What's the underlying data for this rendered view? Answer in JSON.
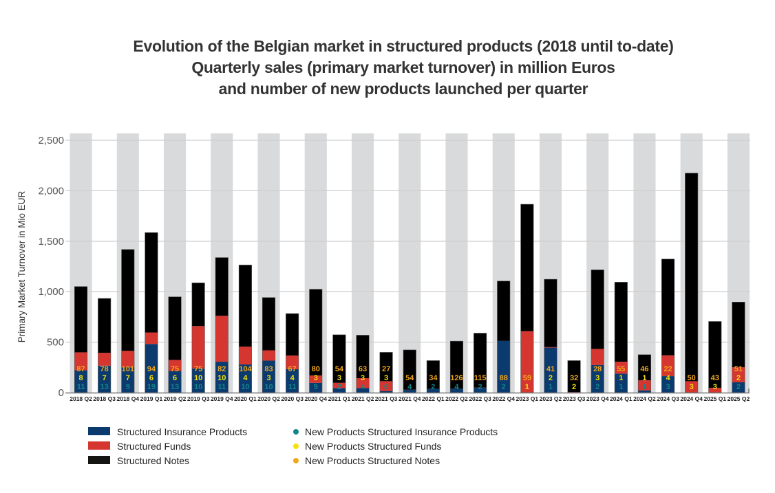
{
  "chart_data": {
    "type": "bar",
    "stacked": true,
    "title": [
      "Evolution of the Belgian market in structured products (2018 until to-date)",
      "Quarterly sales (primary market turnover) in million Euros",
      "and number of new products launched per quarter"
    ],
    "xlabel": "",
    "ylabel": "Primary Market Turnover in Mio EUR",
    "ylim": [
      0,
      2500
    ],
    "yticks": [
      0,
      500,
      1000,
      1500,
      2000,
      2500
    ],
    "ytick_labels": [
      "0",
      "500",
      "1,000",
      "1,500",
      "2,000",
      "2,500"
    ],
    "grid": true,
    "legend_position": "bottom-left",
    "categories": [
      "2018 Q2",
      "2018 Q3",
      "2018 Q4",
      "2019 Q1",
      "2019 Q2",
      "2019 Q3",
      "2019 Q4",
      "2020 Q1",
      "2020 Q2",
      "2020 Q3",
      "2020 Q4",
      "2021 Q1",
      "2021 Q2",
      "2021 Q3",
      "2021 Q4",
      "2022 Q1",
      "2022 Q2",
      "2022 Q3",
      "2022 Q4",
      "2023 Q1",
      "2023 Q2",
      "2023 Q3",
      "2023 Q4",
      "2024 Q1",
      "2024 Q2",
      "2024 Q3",
      "2024 Q4",
      "2025 Q1",
      "2025 Q2"
    ],
    "series": [
      {
        "name": "Structured Insurance Products",
        "color": "#0b3a6e",
        "values": [
          222,
          267,
          251,
          482,
          215,
          240,
          306,
          279,
          317,
          233,
          97,
          45,
          45,
          16,
          29,
          36,
          39,
          50,
          512,
          0,
          446,
          0,
          274,
          188,
          22,
          163,
          0,
          0,
          102
        ]
      },
      {
        "name": "Structured Funds",
        "color": "#d63630",
        "values": [
          177,
          127,
          163,
          114,
          109,
          419,
          455,
          176,
          102,
          134,
          73,
          52,
          98,
          97,
          0,
          0,
          0,
          0,
          0,
          609,
          5,
          5,
          159,
          118,
          100,
          206,
          113,
          48,
          149
        ]
      },
      {
        "name": "Structured Notes",
        "color": "#000000",
        "values": [
          652,
          539,
          1004,
          989,
          625,
          428,
          577,
          809,
          523,
          416,
          854,
          476,
          426,
          286,
          394,
          281,
          471,
          539,
          593,
          1257,
          672,
          312,
          783,
          788,
          254,
          954,
          2061,
          657,
          646
        ]
      }
    ],
    "count_series": [
      {
        "name": "New Products Structured Notes",
        "color": "#f2a71b",
        "values": [
          87,
          78,
          101,
          94,
          75,
          75,
          82,
          104,
          83,
          67,
          80,
          54,
          63,
          27,
          54,
          34,
          126,
          115,
          88,
          59,
          41,
          32,
          28,
          55,
          46,
          22,
          50,
          43,
          51
        ]
      },
      {
        "name": "New Products Structured Funds",
        "color": "#f5e10a",
        "values": [
          8,
          7,
          7,
          6,
          6,
          10,
          10,
          4,
          3,
          4,
          3,
          3,
          3,
          3,
          null,
          null,
          null,
          null,
          null,
          1,
          2,
          2,
          3,
          1,
          1,
          4,
          3,
          3,
          2
        ]
      },
      {
        "name": "New Products Structured Insurance Products",
        "color": "#12868a",
        "values": [
          11,
          13,
          9,
          19,
          13,
          10,
          11,
          10,
          10,
          11,
          9,
          2,
          4,
          6,
          4,
          2,
          4,
          2,
          2,
          null,
          1,
          null,
          2,
          1,
          1,
          3,
          null,
          null,
          2
        ]
      }
    ]
  },
  "legend": {
    "bars": [
      {
        "label": "Structured Insurance Products",
        "color": "#0b3a6e"
      },
      {
        "label": "Structured Funds",
        "color": "#d63630"
      },
      {
        "label": "Structured Notes",
        "color": "#141410"
      }
    ],
    "dots": [
      {
        "label": "New Products Structured Insurance Products",
        "color": "#12868a"
      },
      {
        "label": "New Products Structured Funds",
        "color": "#f5e10a"
      },
      {
        "label": "New Products Structured Notes",
        "color": "#f2a71b"
      }
    ]
  },
  "colors": {
    "band": "#d9dadb",
    "grid": "#cfcfcf",
    "axis": "#777777"
  }
}
